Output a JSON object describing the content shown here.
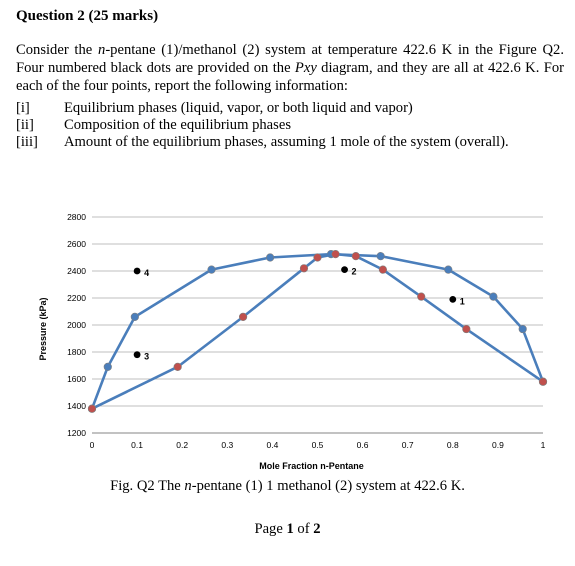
{
  "question": {
    "title": "Question 2 (25 marks)",
    "paragraph": "Consider the n-pentane (1)/methanol (2) system at temperature 422.6 K in the Figure Q2. Four numbered black dots are provided on the Pxy diagram, and they are all at 422.6 K. For each of the four points, report the following information:",
    "items": [
      {
        "num": "[i]",
        "text": "Equilibrium phases (liquid, vapor, or both liquid and vapor)"
      },
      {
        "num": "[ii]",
        "text": "Composition of the equilibrium phases"
      },
      {
        "num": "[iii]",
        "text": "Amount of the equilibrium phases, assuming 1 mole of the system (overall)."
      }
    ]
  },
  "chart_data": {
    "type": "line",
    "xlabel": "Mole Fraction n-Pentane",
    "ylabel": "Pressure (kPa)",
    "xlim": [
      0,
      1
    ],
    "ylim": [
      1200,
      2800
    ],
    "xticks": [
      0,
      0.1,
      0.2,
      0.3,
      0.4,
      0.5,
      0.6,
      0.7,
      0.8,
      0.9,
      1
    ],
    "yticks": [
      1200,
      1400,
      1600,
      1800,
      2000,
      2200,
      2400,
      2600,
      2800
    ],
    "grid": true,
    "line_color": "#4a7ebb",
    "series": [
      {
        "x": [
          0,
          0.035,
          0.095,
          0.265,
          0.395,
          0.53,
          0.64,
          0.79,
          0.89,
          0.955,
          1
        ],
        "y": [
          1380,
          1690,
          2060,
          2410,
          2500,
          2525,
          2510,
          2410,
          2210,
          1970,
          1580
        ],
        "color": "#4a7ebb"
      },
      {
        "x": [
          0,
          0.19,
          0.335,
          0.47,
          0.5,
          0.54,
          0.585,
          0.645,
          0.73,
          0.83,
          1
        ],
        "y": [
          1380,
          1690,
          2060,
          2420,
          2500,
          2525,
          2510,
          2410,
          2210,
          1970,
          1580
        ],
        "color": "#c0504d"
      }
    ],
    "points": [
      {
        "label": "1",
        "x": 0.8,
        "y": 2190
      },
      {
        "label": "2",
        "x": 0.56,
        "y": 2410
      },
      {
        "label": "3",
        "x": 0.1,
        "y": 1780
      },
      {
        "label": "4",
        "x": 0.1,
        "y": 2400
      }
    ]
  },
  "caption": "Fig. Q2 The n-pentane (1) 1 methanol (2) system at 422.6 K.",
  "page": "Page 1 of 2"
}
